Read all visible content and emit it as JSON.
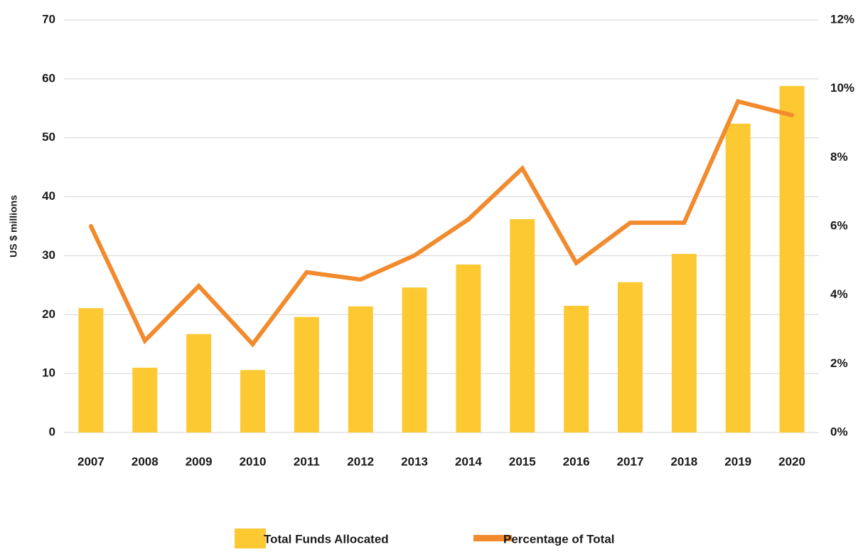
{
  "chart_data": {
    "type": "bar_line",
    "y_label": "US $ millions",
    "categories": [
      "2007",
      "2008",
      "2009",
      "2010",
      "2011",
      "2012",
      "2013",
      "2014",
      "2015",
      "2016",
      "2017",
      "2018",
      "2019",
      "2020"
    ],
    "series": [
      {
        "name": "Total Funds Allocated",
        "type": "bar",
        "color": "#fdc933",
        "axis": "y",
        "values": [
          21.1,
          11,
          16.7,
          10.6,
          19.6,
          21.4,
          24.6,
          28.5,
          36.2,
          21.5,
          25.5,
          30.3,
          52.4,
          58.8
        ]
      },
      {
        "name": "Percentage of Total",
        "type": "line",
        "color": "#f28a2e",
        "axis": "y2",
        "values": [
          6.0,
          2.67,
          4.26,
          2.57,
          4.66,
          4.45,
          5.15,
          6.2,
          7.68,
          4.93,
          6.1,
          6.1,
          9.63,
          9.23
        ]
      }
    ],
    "ylim": [
      0,
      70
    ],
    "yticks": [
      0,
      10,
      20,
      30,
      40,
      50,
      60,
      70
    ],
    "y2lim": [
      0,
      12
    ],
    "y2ticks": [
      {
        "value": 0,
        "label": "0%"
      },
      {
        "value": 2,
        "label": "2%"
      },
      {
        "value": 4,
        "label": "4%"
      },
      {
        "value": 6,
        "label": "6%"
      },
      {
        "value": 8,
        "label": "8%"
      },
      {
        "value": 10,
        "label": "10%"
      },
      {
        "value": 12,
        "label": "12%"
      }
    ],
    "grid": true,
    "legend": "bottom"
  }
}
